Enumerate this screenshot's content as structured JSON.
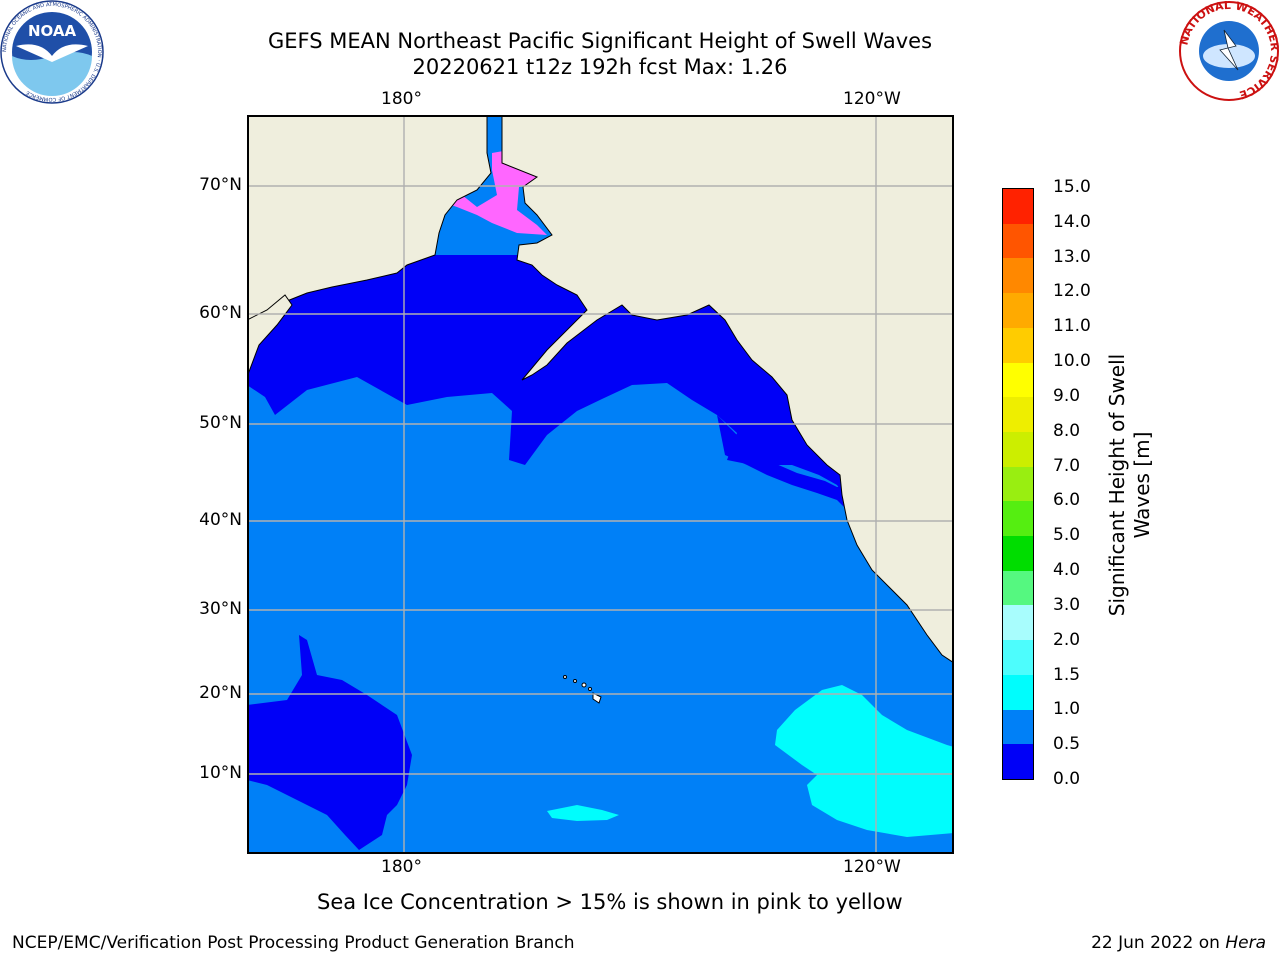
{
  "header": {
    "title_line1": "GEFS MEAN Northeast Pacific Significant Height of Swell Waves",
    "title_line2": "20220621 t12z 192h fcst   Max: 1.26"
  },
  "logos": {
    "noaa_text": "NOAA",
    "noaa_ring_text": "NATIONAL OCEANIC AND ATMOSPHERIC ADMINISTRATION · U.S. DEPARTMENT OF COMMERCE",
    "nws_ring_text": "NATIONAL WEATHER SERVICE"
  },
  "map": {
    "lon_labels_top": [
      "180°",
      "120°W"
    ],
    "lon_labels_bottom": [
      "180°",
      "120°W"
    ],
    "lat_labels": [
      "70°N",
      "60°N",
      "50°N",
      "40°N",
      "30°N",
      "20°N",
      "10°N"
    ],
    "colors": {
      "land": "#efeedd",
      "ocean_low": "#0000f7",
      "ocean_mid": "#0080f7",
      "ocean_cyan": "#00fdfd",
      "ice_pink": "#ff66ff",
      "ice_orange": "#ffaa44",
      "grid": "#b0b0b0"
    }
  },
  "colorbar": {
    "title": "Significant Height of Swell Waves [m]",
    "labels": [
      "0.0",
      "0.5",
      "1.0",
      "1.5",
      "2.0",
      "3.0",
      "4.0",
      "5.0",
      "6.0",
      "7.0",
      "8.0",
      "9.0",
      "10.0",
      "11.0",
      "12.0",
      "13.0",
      "14.0",
      "15.0"
    ],
    "colors": [
      "#0000f7",
      "#0080f7",
      "#00fdfd",
      "#4dfdfd",
      "#a8fdfd",
      "#55f880",
      "#00dd00",
      "#55ee11",
      "#99ee11",
      "#ccee00",
      "#eeee00",
      "#ffff00",
      "#ffcc00",
      "#ffaa00",
      "#ff8800",
      "#ff5500",
      "#ff2200"
    ]
  },
  "caption": "Sea Ice Concentration > 15% is shown in pink to yellow",
  "footer": {
    "left": "NCEP/EMC/Verification Post Processing Product Generation Branch",
    "right_prefix": "22 Jun 2022 on ",
    "right_host": "Hera"
  }
}
